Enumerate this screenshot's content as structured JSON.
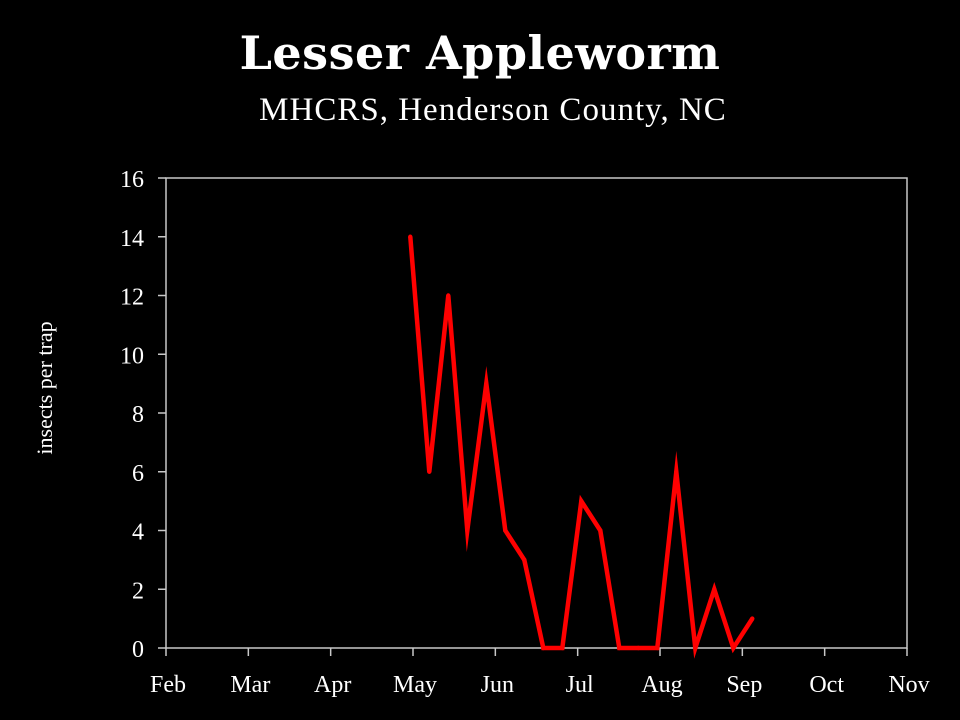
{
  "chart_data": {
    "type": "line",
    "title": "Lesser Appleworm",
    "subtitle": "MHCRS, Henderson County, NC",
    "xlabel": "",
    "ylabel": "insects per trap",
    "x_tick_labels": [
      "Feb",
      "Mar",
      "Apr",
      "May",
      "Jun",
      "Jul",
      "Aug",
      "Sep",
      "Oct",
      "Nov"
    ],
    "y_ticks": [
      0,
      2,
      4,
      6,
      8,
      10,
      12,
      14,
      16
    ],
    "xlim": [
      "Feb 1",
      "Nov 1"
    ],
    "ylim": [
      0,
      16
    ],
    "grid": false,
    "legend": "none",
    "line_color": "#ff0000",
    "series": [
      {
        "x": [
          "May 2",
          "May 9",
          "May 16",
          "May 23",
          "May 30",
          "Jun 6",
          "Jun 13",
          "Jun 20",
          "Jun 27",
          "Jul 4",
          "Jul 11",
          "Jul 18",
          "Jul 25",
          "Aug 1",
          "Aug 8",
          "Aug 15",
          "Aug 22",
          "Aug 29",
          "Sep 5"
        ],
        "values": [
          14,
          6,
          12,
          4,
          9,
          4,
          3,
          0,
          0,
          5,
          4,
          0,
          0,
          0,
          6,
          0,
          2,
          0,
          1
        ]
      }
    ]
  }
}
